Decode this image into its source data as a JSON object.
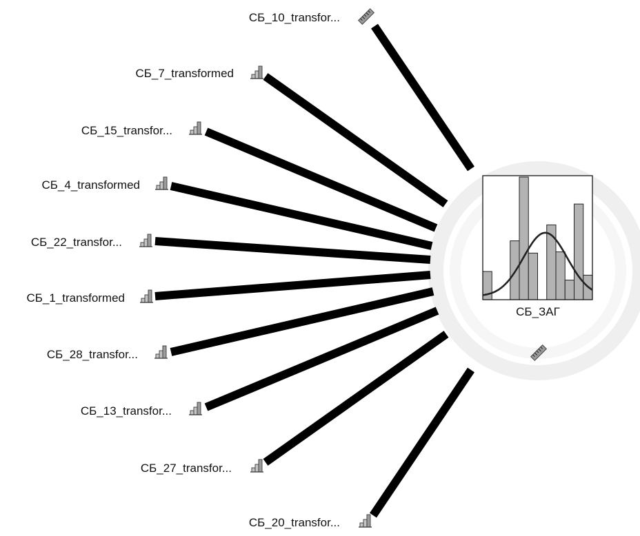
{
  "target": {
    "label": "СБ_ЗАГ",
    "measure_icon": "ruler-icon",
    "histogram_bars": [
      0.23,
      0,
      0,
      0.48,
      1.0,
      0.38,
      0,
      0.61,
      0.39,
      0.16,
      0.78,
      0.2
    ],
    "curve": "normal-distribution",
    "colors": {
      "bar": "#b3b3b3",
      "frame": "#000000",
      "curve": "#222222",
      "halo": "#ececec"
    }
  },
  "predictors": [
    {
      "label": "СБ_10_transfor...",
      "icon": "ruler-icon"
    },
    {
      "label": "СБ_7_transformed",
      "icon": "bar-chart-icon"
    },
    {
      "label": "СБ_15_transfor...",
      "icon": "bar-chart-icon"
    },
    {
      "label": "СБ_4_transformed",
      "icon": "bar-chart-icon"
    },
    {
      "label": "СБ_22_transfor...",
      "icon": "bar-chart-icon"
    },
    {
      "label": "СБ_1_transformed",
      "icon": "bar-chart-icon"
    },
    {
      "label": "СБ_28_transfor...",
      "icon": "bar-chart-icon"
    },
    {
      "label": "СБ_13_transfor...",
      "icon": "bar-chart-icon"
    },
    {
      "label": "СБ_27_transfor...",
      "icon": "bar-chart-icon"
    },
    {
      "label": "СБ_20_transfor...",
      "icon": "bar-chart-icon"
    }
  ],
  "colors": {
    "link": "#000000",
    "text": "#111111"
  }
}
